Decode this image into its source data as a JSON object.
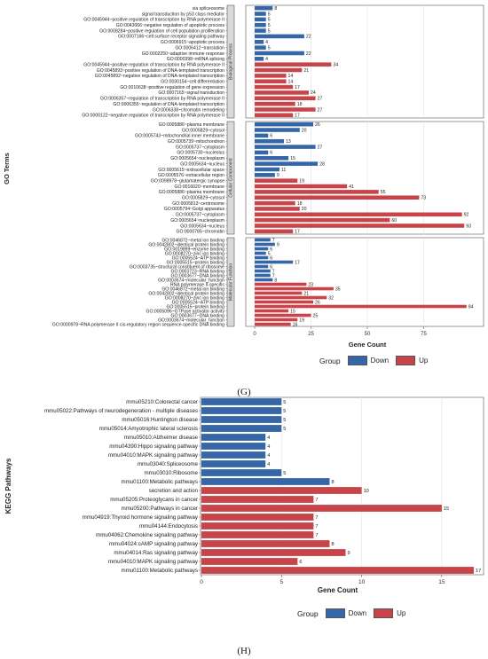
{
  "colors": {
    "down": "#3466a8",
    "up": "#c84448",
    "panel_bg": "#ffffff",
    "grid": "#e6e6e6",
    "strip_bg": "#d9d9d9"
  },
  "legend": {
    "title": "Group",
    "down": "Down",
    "up": "Up"
  },
  "panel_labels": {
    "g": "(G)",
    "h": "(H)"
  },
  "chart_data": [
    {
      "type": "bar",
      "orientation": "horizontal",
      "title": "",
      "xlabel": "Gene Count",
      "ylabel": "GO Terms",
      "xlim": [
        0,
        100
      ],
      "xticks": [
        0,
        25,
        50,
        75
      ],
      "grid": true,
      "legend_placement": "bottom",
      "facets": [
        {
          "name": "Biological Process",
          "items": [
            {
              "label": "via spliceosome",
              "value": 8,
              "group": "Down"
            },
            {
              "label": "signal transduction by p53 class mediator",
              "value": 5,
              "group": "Down"
            },
            {
              "label": "GO:0045944~positive regulation of transcription by RNA polymerase II",
              "value": 5,
              "group": "Down"
            },
            {
              "label": "GO:0043066~negative regulation of apoptotic process",
              "value": 5,
              "group": "Down"
            },
            {
              "label": "GO:0008284~positive regulation of cell population proliferation",
              "value": 5,
              "group": "Down"
            },
            {
              "label": "GO:0007166~cell surface receptor signaling pathway",
              "value": 22,
              "group": "Down"
            },
            {
              "label": "GO:0006915~apoptotic process",
              "value": 4,
              "group": "Down"
            },
            {
              "label": "GO:0006412~translation",
              "value": 5,
              "group": "Down"
            },
            {
              "label": "GO:0002250~adaptive immune response",
              "value": 22,
              "group": "Down"
            },
            {
              "label": "GO:0000398~mRNA splicing",
              "value": 4,
              "group": "Down"
            },
            {
              "label": "GO:0045944~positive regulation of transcription by RNA polymerase II",
              "value": 34,
              "group": "Up"
            },
            {
              "label": "GO:0045893~positive regulation of DNA-templated transcription",
              "value": 21,
              "group": "Up"
            },
            {
              "label": "GO:0045892~negative regulation of DNA-templated transcription",
              "value": 14,
              "group": "Up"
            },
            {
              "label": "GO:0030154~cell differentiation",
              "value": 14,
              "group": "Up"
            },
            {
              "label": "GO:0010628~positive regulation of gene expression",
              "value": 17,
              "group": "Up"
            },
            {
              "label": "GO:0007165~signal transduction",
              "value": 24,
              "group": "Up"
            },
            {
              "label": "GO:0006357~regulation of transcription by RNA polymerase II",
              "value": 27,
              "group": "Up"
            },
            {
              "label": "GO:0006355~regulation of DNA-templated transcription",
              "value": 18,
              "group": "Up"
            },
            {
              "label": "GO:0006338~chromatin remodeling",
              "value": 27,
              "group": "Up"
            },
            {
              "label": "GO:0000122~negative regulation of transcription by RNA polymerase II",
              "value": 17,
              "group": "Up"
            }
          ]
        },
        {
          "name": "Cellular Component",
          "items": [
            {
              "label": "GO:0005886~plasma membrane",
              "value": 26,
              "group": "Down"
            },
            {
              "label": "GO:0005829~cytosol",
              "value": 20,
              "group": "Down"
            },
            {
              "label": "GO:0005743~mitochondrial inner membrane",
              "value": 6,
              "group": "Down"
            },
            {
              "label": "GO:0005739~mitochondrion",
              "value": 13,
              "group": "Down"
            },
            {
              "label": "GO:0005737~cytoplasm",
              "value": 27,
              "group": "Down"
            },
            {
              "label": "GO:0005730~nucleolus",
              "value": 6,
              "group": "Down"
            },
            {
              "label": "GO:0005654~nucleoplasm",
              "value": 15,
              "group": "Down"
            },
            {
              "label": "GO:0005634~nucleus",
              "value": 28,
              "group": "Down"
            },
            {
              "label": "GO:0005615~extracellular space",
              "value": 11,
              "group": "Down"
            },
            {
              "label": "GO:0005576~extracellular region",
              "value": 9,
              "group": "Down"
            },
            {
              "label": "GO:0098978~glutamatergic synapse",
              "value": 19,
              "group": "Up"
            },
            {
              "label": "GO:0016020~membrane",
              "value": 41,
              "group": "Up"
            },
            {
              "label": "GO:0005886~plasma membrane",
              "value": 55,
              "group": "Up"
            },
            {
              "label": "GO:0005829~cytosol",
              "value": 73,
              "group": "Up"
            },
            {
              "label": "GO:0005813~centrosome",
              "value": 18,
              "group": "Up"
            },
            {
              "label": "GO:0005794~Golgi apparatus",
              "value": 20,
              "group": "Up"
            },
            {
              "label": "GO:0005737~cytoplasm",
              "value": 92,
              "group": "Up"
            },
            {
              "label": "GO:0005654~nucleoplasm",
              "value": 60,
              "group": "Up"
            },
            {
              "label": "GO:0005634~nucleus",
              "value": 93,
              "group": "Up"
            },
            {
              "label": "GO:0000785~chromatin",
              "value": 17,
              "group": "Up"
            }
          ]
        },
        {
          "name": "Molecular Function",
          "items": [
            {
              "label": "GO:0046872~metal ion binding",
              "value": 7,
              "group": "Down"
            },
            {
              "label": "GO:0042802~identical protein binding",
              "value": 9,
              "group": "Down"
            },
            {
              "label": "GO:0019899~enzyme binding",
              "value": 6,
              "group": "Down"
            },
            {
              "label": "GO:0008270~zinc ion binding",
              "value": 5,
              "group": "Down"
            },
            {
              "label": "GO:0005524~ATP binding",
              "value": 6,
              "group": "Down"
            },
            {
              "label": "GO:0005515~protein binding",
              "value": 17,
              "group": "Down"
            },
            {
              "label": "GO:0003735~structural constituent of ribosome",
              "value": 6,
              "group": "Down"
            },
            {
              "label": "GO:0003723~RNA binding",
              "value": 7,
              "group": "Down"
            },
            {
              "label": "GO:0003677~DNA binding",
              "value": 7,
              "group": "Down"
            },
            {
              "label": "GO:0003674~molecular_function",
              "value": 8,
              "group": "Down"
            },
            {
              "label": "RNA polymerase II-specific",
              "value": 23,
              "group": "Up"
            },
            {
              "label": "GO:0046872~metal ion binding",
              "value": 35,
              "group": "Up"
            },
            {
              "label": "GO:0042802~identical protein binding",
              "value": 21,
              "group": "Up"
            },
            {
              "label": "GO:0008270~zinc ion binding",
              "value": 32,
              "group": "Up"
            },
            {
              "label": "GO:0005524~ATP binding",
              "value": 26,
              "group": "Up"
            },
            {
              "label": "GO:0005515~protein binding",
              "value": 94,
              "group": "Up"
            },
            {
              "label": "GO:0005096~GTPase activator activity",
              "value": 15,
              "group": "Up"
            },
            {
              "label": "GO:0003677~DNA binding",
              "value": 25,
              "group": "Up"
            },
            {
              "label": "GO:0003674~molecular_function",
              "value": 19,
              "group": "Up"
            },
            {
              "label": "GO:0000978~RNA polymerase II cis-regulatory region sequence-specific DNA binding",
              "value": 16,
              "group": "Up"
            }
          ]
        }
      ]
    },
    {
      "type": "bar",
      "orientation": "horizontal",
      "title": "",
      "xlabel": "Gene Count",
      "ylabel": "KEGG Pathways",
      "xlim": [
        0,
        17.5
      ],
      "xticks": [
        0,
        5,
        10,
        15
      ],
      "grid": true,
      "legend_placement": "bottom",
      "items": [
        {
          "label": "mmu05210:Colorectal cancer",
          "value": 5,
          "group": "Down"
        },
        {
          "label": "mmu05022:Pathways of neurodegeneration - multiple diseases",
          "value": 5,
          "group": "Down"
        },
        {
          "label": "mmu05016:Huntington disease",
          "value": 5,
          "group": "Down"
        },
        {
          "label": "mmu05014:Amyotrophic lateral sclerosis",
          "value": 5,
          "group": "Down"
        },
        {
          "label": "mmu05010:Alzheimer disease",
          "value": 4,
          "group": "Down"
        },
        {
          "label": "mmu04390:Hippo signaling pathway",
          "value": 4,
          "group": "Down"
        },
        {
          "label": "mmu04010:MAPK signaling pathway",
          "value": 4,
          "group": "Down"
        },
        {
          "label": "mmu03040:Spliceosome",
          "value": 4,
          "group": "Down"
        },
        {
          "label": "mmu03010:Ribosome",
          "value": 5,
          "group": "Down"
        },
        {
          "label": "mmu01100:Metabolic pathways",
          "value": 8,
          "group": "Down"
        },
        {
          "label": "secretion and action",
          "value": 10,
          "group": "Up"
        },
        {
          "label": "mmu05205:Proteoglycans in cancer",
          "value": 7,
          "group": "Up"
        },
        {
          "label": "mmu05200:Pathways in cancer",
          "value": 15,
          "group": "Up"
        },
        {
          "label": "mmu04919:Thyroid hormone signaling pathway",
          "value": 7,
          "group": "Up"
        },
        {
          "label": "mmu04144:Endocytosis",
          "value": 7,
          "group": "Up"
        },
        {
          "label": "mmu04062:Chemokine signaling pathway",
          "value": 7,
          "group": "Up"
        },
        {
          "label": "mmu04024:cAMP signaling pathway",
          "value": 8,
          "group": "Up"
        },
        {
          "label": "mmu04014:Ras signaling pathway",
          "value": 9,
          "group": "Up"
        },
        {
          "label": "mmu04010:MAPK signaling pathway",
          "value": 6,
          "group": "Up"
        },
        {
          "label": "mmu01100:Metabolic pathways",
          "value": 17,
          "group": "Up"
        }
      ]
    }
  ]
}
